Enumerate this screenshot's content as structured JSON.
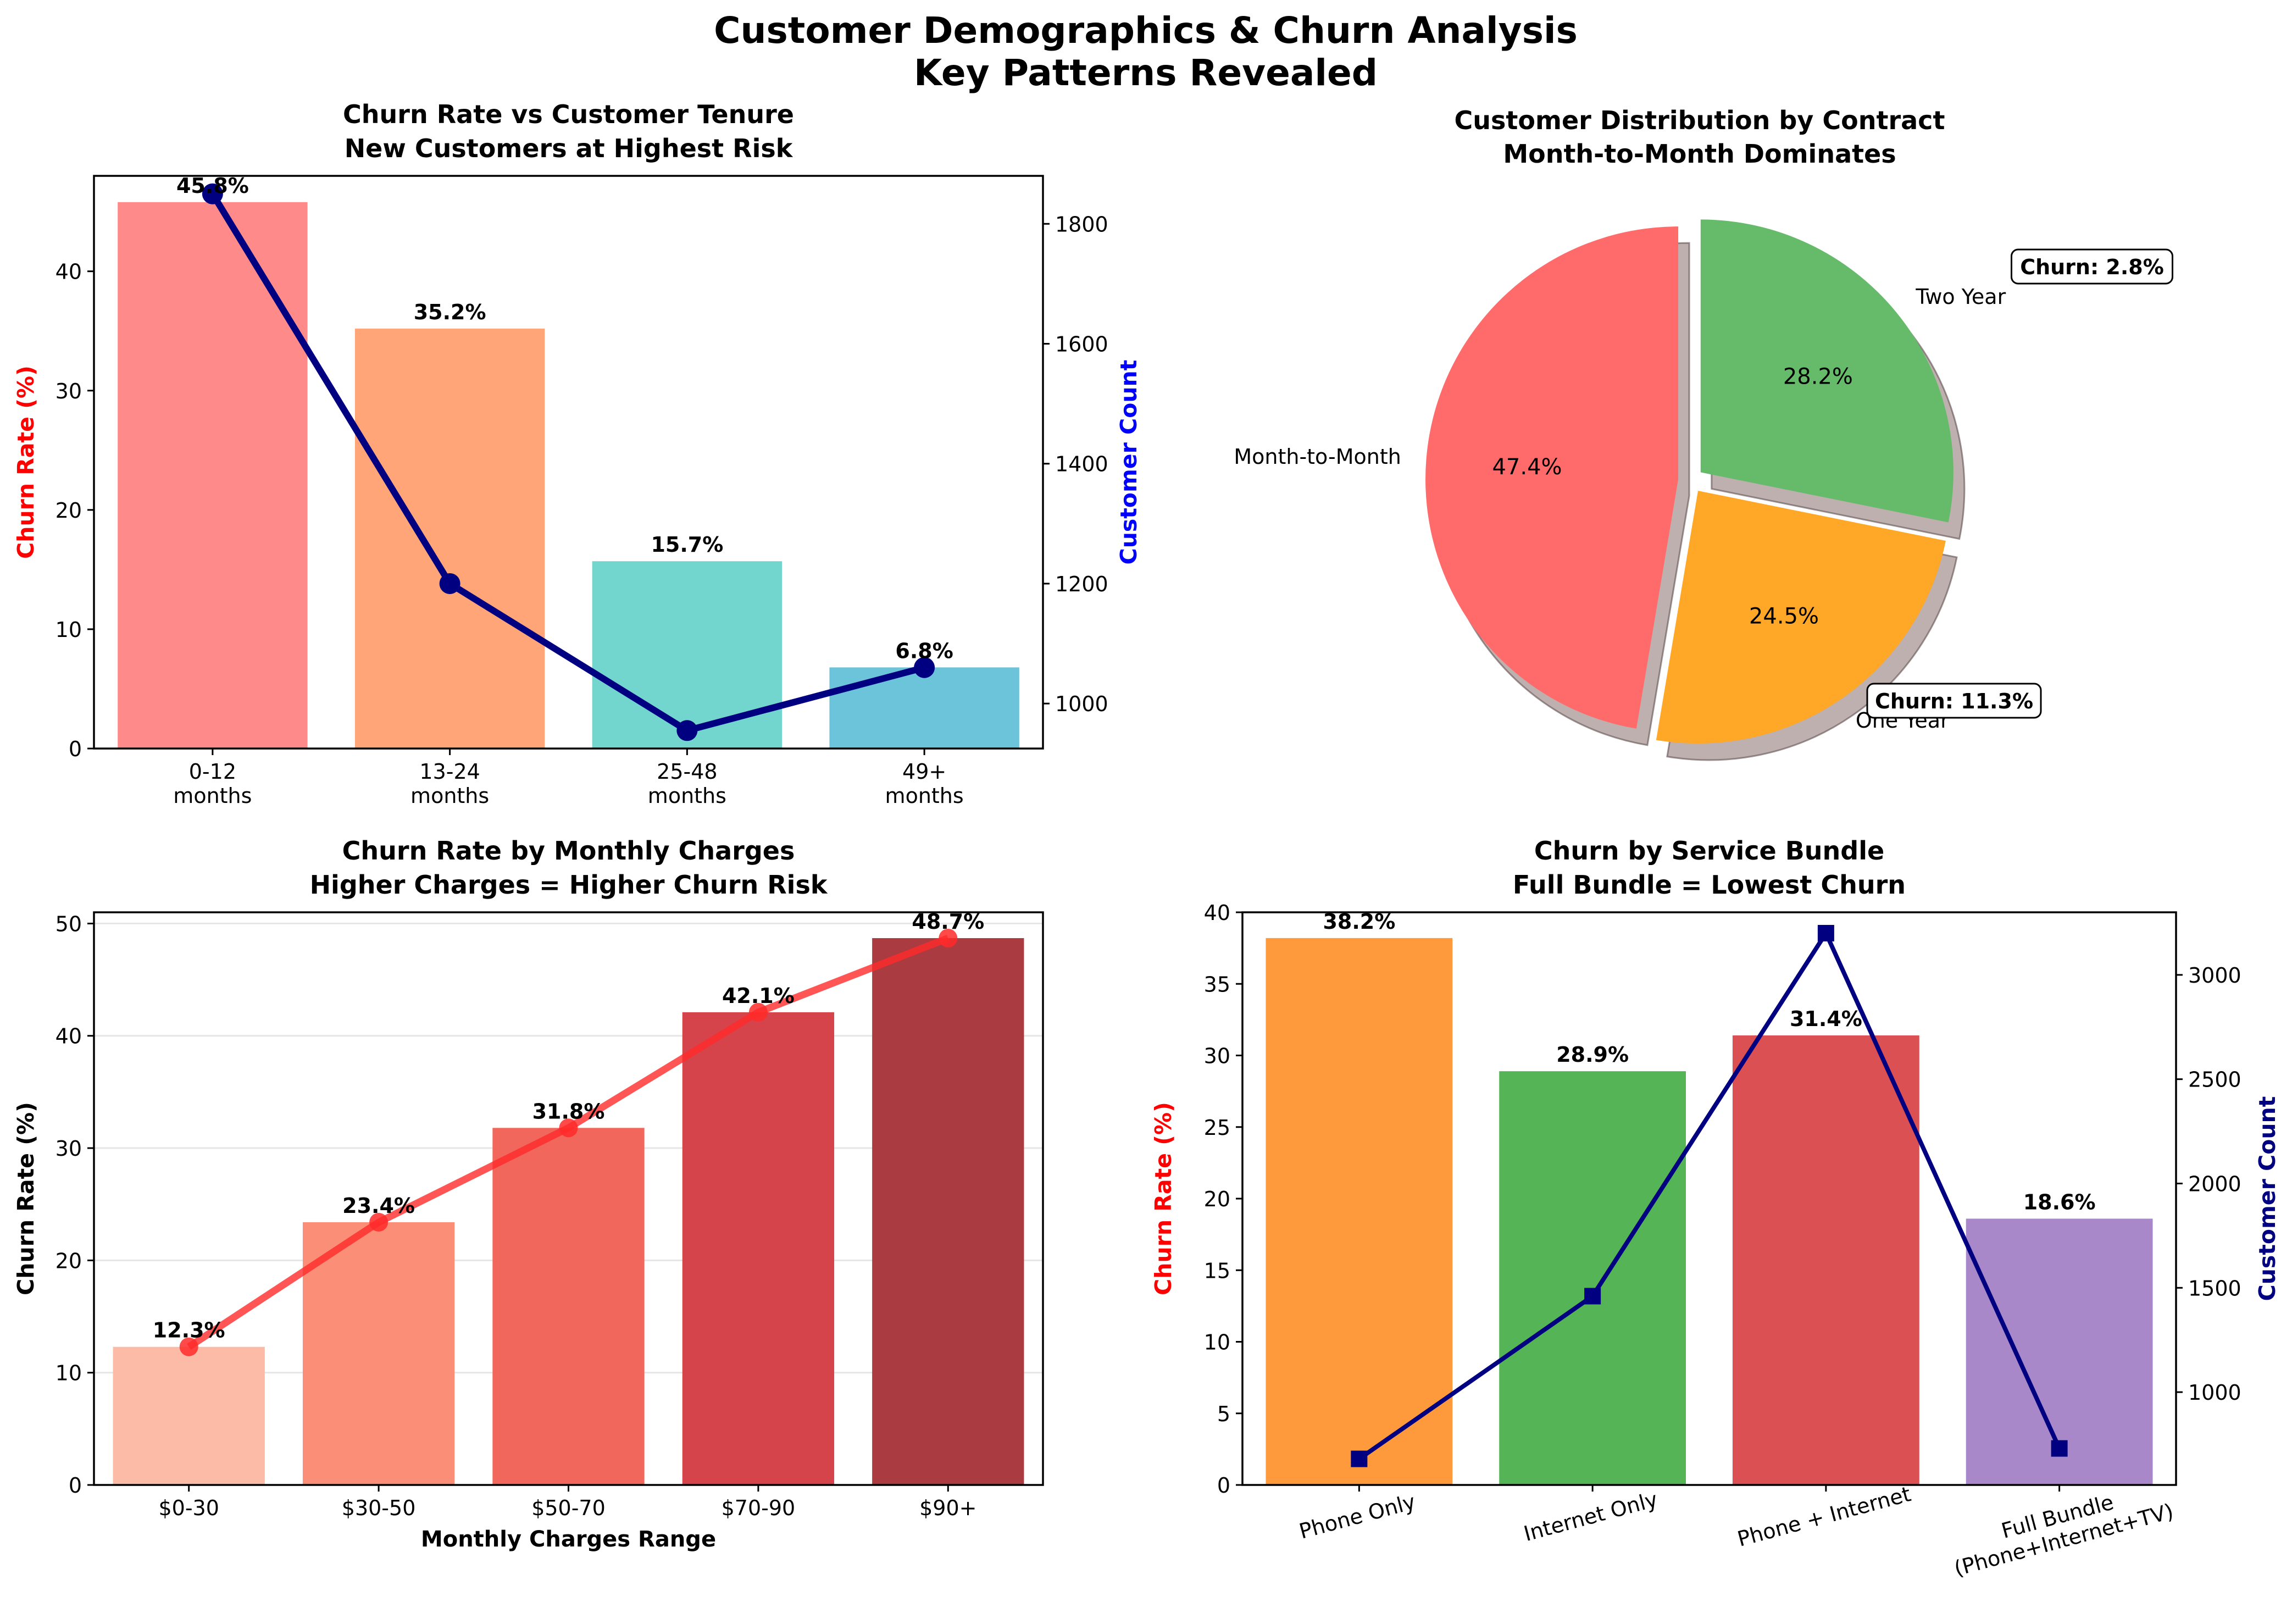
{
  "figure": {
    "title_line1": "Customer Demographics & Churn Analysis",
    "title_line2": "Key Patterns Revealed"
  },
  "chart_data": [
    {
      "type": "bar",
      "title_line1": "Churn Rate vs Customer Tenure",
      "title_line2": "New Customers at Highest Risk",
      "categories": [
        "0-12\nmonths",
        "13-24\nmonths",
        "25-48\nmonths",
        "49+\nmonths"
      ],
      "values": [
        45.8,
        35.2,
        15.7,
        6.8
      ],
      "value_labels": [
        "45.8%",
        "35.2%",
        "15.7%",
        "6.8%"
      ],
      "bar_colors": [
        "#FF8A8A",
        "#FFA578",
        "#72D6CF",
        "#6CC4DA"
      ],
      "ylabel": "Churn Rate (%)",
      "ylabel_color": "#FF0000",
      "ylim": [
        0,
        48
      ],
      "yticks": [
        0,
        10,
        20,
        30,
        40
      ],
      "secondary_axis": {
        "ylabel": "Customer Count",
        "ylabel_color": "#0000FF",
        "line_color": "#000080",
        "marker": "circle",
        "values": [
          1850,
          1200,
          955,
          1060
        ],
        "ylim": [
          925,
          1880
        ],
        "yticks": [
          1000,
          1200,
          1400,
          1600,
          1800
        ]
      },
      "grid": false
    },
    {
      "type": "pie",
      "title_line1": "Customer Distribution by Contract",
      "title_line2": "Month-to-Month Dominates",
      "slices": [
        {
          "label": "Month-to-Month",
          "value": 47.4,
          "pct_label": "47.4%",
          "color": "#FF6B6B"
        },
        {
          "label": "One Year",
          "value": 24.5,
          "pct_label": "24.5%",
          "color": "#FFA726"
        },
        {
          "label": "Two Year",
          "value": 28.2,
          "pct_label": "28.2%",
          "color": "#66BB6A"
        }
      ],
      "annotations": [
        {
          "text": "Churn: 2.8%",
          "target": "Two Year"
        },
        {
          "text": "Churn: 11.3%",
          "target": "One Year"
        }
      ],
      "shadow": true,
      "explode": "all"
    },
    {
      "type": "bar",
      "title_line1": "Churn Rate by Monthly Charges",
      "title_line2": "Higher Charges = Higher Churn Risk",
      "categories": [
        "$0-30",
        "$30-50",
        "$50-70",
        "$70-90",
        "$90+"
      ],
      "values": [
        12.3,
        23.4,
        31.8,
        42.1,
        48.7
      ],
      "value_labels": [
        "12.3%",
        "23.4%",
        "31.8%",
        "42.1%",
        "48.7%"
      ],
      "bar_colors": [
        "#FCBBA6",
        "#FB8E76",
        "#F1675B",
        "#D5444B",
        "#A93B41"
      ],
      "overlay_line": {
        "color": "#FF2A2A",
        "marker": "circle"
      },
      "xlabel": "Monthly Charges Range",
      "ylabel": "Churn Rate (%)",
      "ylim": [
        0,
        51
      ],
      "yticks": [
        0,
        10,
        20,
        30,
        40,
        50
      ],
      "grid": "y"
    },
    {
      "type": "bar",
      "title_line1": "Churn by Service Bundle",
      "title_line2": "Full Bundle = Lowest Churn",
      "categories": [
        "Phone Only",
        "Internet Only",
        "Phone + Internet",
        "Full Bundle\n(Phone+Internet+TV)"
      ],
      "values": [
        38.2,
        28.9,
        31.4,
        18.6
      ],
      "value_labels": [
        "38.2%",
        "28.9%",
        "31.4%",
        "18.6%"
      ],
      "bar_colors": [
        "#FF9A3C",
        "#55B455",
        "#DB5053",
        "#A888C8"
      ],
      "ylabel": "Churn Rate (%)",
      "ylabel_color": "#FF0000",
      "ylim": [
        0,
        40
      ],
      "yticks": [
        0,
        5,
        10,
        15,
        20,
        25,
        30,
        35,
        40
      ],
      "tick_rotation": 15,
      "secondary_axis": {
        "ylabel": "Customer Count",
        "ylabel_color": "#000080",
        "line_color": "#000080",
        "marker": "square",
        "values": [
          680,
          1460,
          3200,
          730
        ],
        "ylim": [
          555,
          3300
        ],
        "yticks": [
          1000,
          1500,
          2000,
          2500,
          3000
        ]
      },
      "grid": false
    }
  ]
}
